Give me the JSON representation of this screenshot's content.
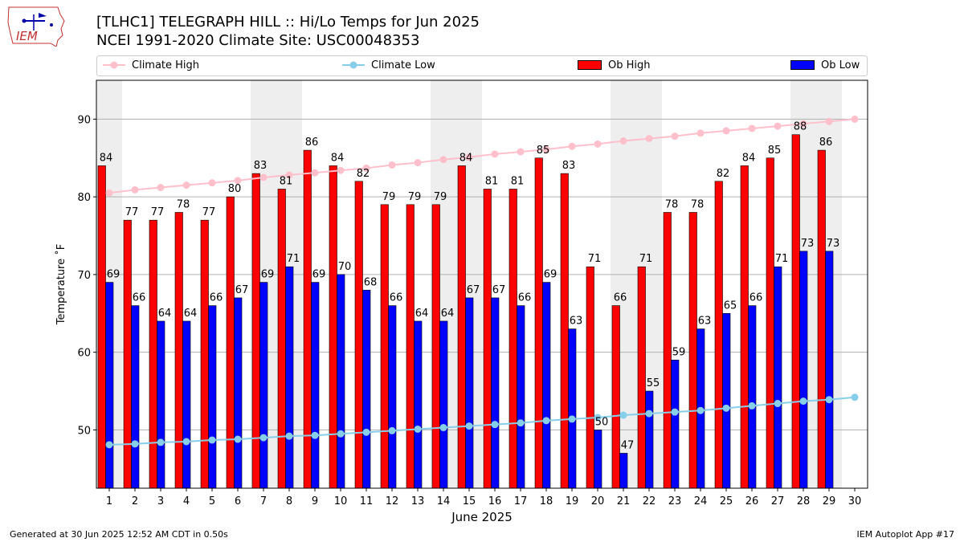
{
  "header": {
    "logo_text": "IEM",
    "title_line_1": "[TLHC1] TELEGRAPH HILL :: Hi/Lo Temps for Jun 2025",
    "title_line_2": "NCEI 1991-2020 Climate Site: USC00048353"
  },
  "footer": {
    "generated": "Generated at 30 Jun 2025 12:52 AM CDT in 0.50s",
    "app": "IEM Autoplot App #17"
  },
  "colors": {
    "ob_high": "#ff0000",
    "ob_low": "#0000ff",
    "climate_high": "#ffc0cb",
    "climate_low": "#87ceeb",
    "weekend_shade": "#eeeeee",
    "grid": "#b0b0b0"
  },
  "chart_data": {
    "type": "bar",
    "xlabel": "June 2025",
    "ylabel": "Temperature ˚F",
    "ylim": [
      42.5,
      95
    ],
    "yticks": [
      50,
      60,
      70,
      80,
      90
    ],
    "grid": "horizontal",
    "legend_placement": "top",
    "categories": [
      "1",
      "2",
      "3",
      "4",
      "5",
      "6",
      "7",
      "8",
      "9",
      "10",
      "11",
      "12",
      "13",
      "14",
      "15",
      "16",
      "17",
      "18",
      "19",
      "20",
      "21",
      "22",
      "23",
      "24",
      "25",
      "26",
      "27",
      "28",
      "29",
      "30"
    ],
    "weekend_days": [
      1,
      7,
      8,
      14,
      15,
      21,
      22,
      28,
      29
    ],
    "series": [
      {
        "name": "Ob High",
        "kind": "bar",
        "values": [
          84,
          77,
          77,
          78,
          77,
          80,
          83,
          81,
          86,
          84,
          82,
          79,
          79,
          79,
          84,
          81,
          81,
          85,
          83,
          71,
          66,
          71,
          78,
          78,
          82,
          84,
          85,
          88,
          86,
          null
        ]
      },
      {
        "name": "Ob Low",
        "kind": "bar",
        "values": [
          69,
          66,
          64,
          64,
          66,
          67,
          69,
          71,
          69,
          70,
          68,
          66,
          64,
          64,
          67,
          67,
          66,
          69,
          63,
          50,
          47,
          55,
          59,
          63,
          65,
          66,
          71,
          73,
          73,
          null
        ]
      },
      {
        "name": "Climate High",
        "kind": "line",
        "values": [
          80.5,
          80.9,
          81.2,
          81.5,
          81.8,
          82.1,
          82.5,
          82.8,
          83.1,
          83.4,
          83.7,
          84.1,
          84.4,
          84.8,
          85.1,
          85.5,
          85.8,
          86.1,
          86.5,
          86.8,
          87.2,
          87.5,
          87.8,
          88.2,
          88.5,
          88.8,
          89.1,
          89.4,
          89.7,
          90.0
        ]
      },
      {
        "name": "Climate Low",
        "kind": "line",
        "values": [
          48.1,
          48.2,
          48.4,
          48.5,
          48.7,
          48.8,
          49.0,
          49.2,
          49.3,
          49.5,
          49.7,
          49.9,
          50.1,
          50.3,
          50.5,
          50.7,
          50.9,
          51.2,
          51.4,
          51.6,
          51.9,
          52.1,
          52.3,
          52.5,
          52.8,
          53.1,
          53.4,
          53.7,
          53.9,
          54.2
        ]
      }
    ]
  }
}
